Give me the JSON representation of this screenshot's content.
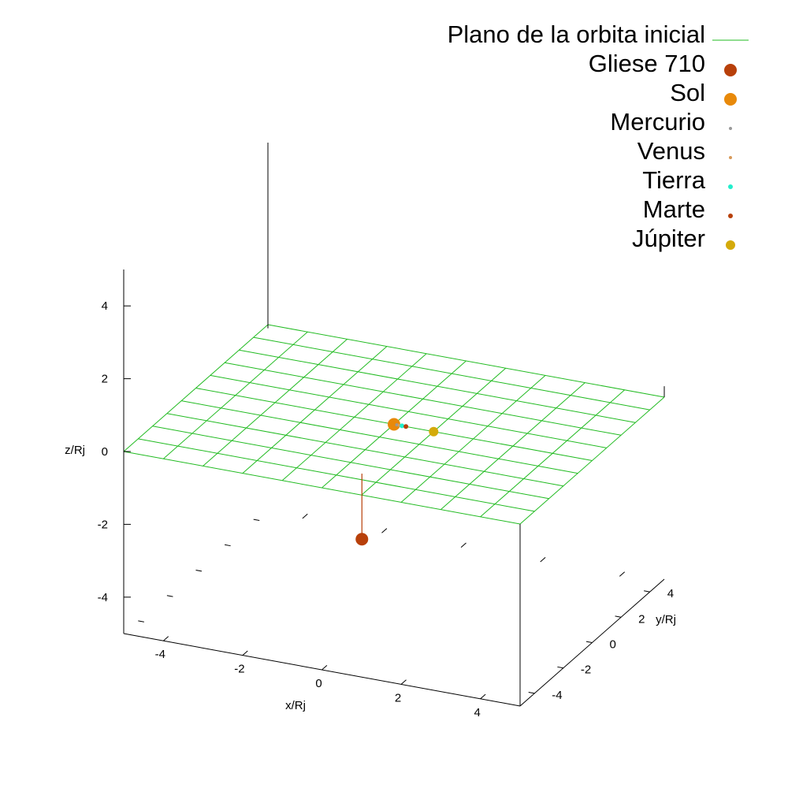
{
  "chart_data": {
    "type": "scatter",
    "projection": "3d",
    "xlabel": "x/Rj",
    "ylabel": "y/Rj",
    "zlabel": "z/Rj",
    "xlim": [
      -5,
      5
    ],
    "ylim": [
      -5,
      5
    ],
    "zlim": [
      -5,
      5
    ],
    "x_ticks": [
      "-4",
      "-2",
      "0",
      "2",
      "4"
    ],
    "y_ticks": [
      "-4",
      "-2",
      "0",
      "2",
      "4"
    ],
    "z_ticks": [
      "-4",
      "-2",
      "0",
      "2",
      "4"
    ],
    "legend_placement": "top-right",
    "plane": {
      "name": "Plano de la orbita inicial",
      "color": "#22bb22",
      "z": 0,
      "grid_step": 1
    },
    "series": [
      {
        "name": "Gliese 710",
        "color": "#b8400a",
        "size": "large",
        "points": [
          {
            "x": 0.5,
            "y": -3.6,
            "z": -1.8
          }
        ],
        "drop_line": true
      },
      {
        "name": "Sol",
        "color": "#e8890a",
        "size": "large",
        "points": [
          {
            "x": 0.0,
            "y": 0.0,
            "z": 0.0
          }
        ]
      },
      {
        "name": "Mercurio",
        "color": "#999999",
        "size": "tiny",
        "points": [
          {
            "x": 0.07,
            "y": 0.0,
            "z": 0.0
          }
        ]
      },
      {
        "name": "Venus",
        "color": "#d89a5a",
        "size": "tiny",
        "points": [
          {
            "x": 0.13,
            "y": 0.0,
            "z": 0.0
          }
        ]
      },
      {
        "name": "Tierra",
        "color": "#22eecc",
        "size": "small",
        "points": [
          {
            "x": 0.2,
            "y": 0.0,
            "z": 0.0
          }
        ]
      },
      {
        "name": "Marte",
        "color": "#b8400a",
        "size": "small",
        "points": [
          {
            "x": 0.3,
            "y": 0.0,
            "z": 0.0
          }
        ]
      },
      {
        "name": "Júpiter",
        "color": "#d4aa0a",
        "size": "medium",
        "points": [
          {
            "x": 1.0,
            "y": 0.0,
            "z": 0.0
          }
        ]
      }
    ]
  }
}
